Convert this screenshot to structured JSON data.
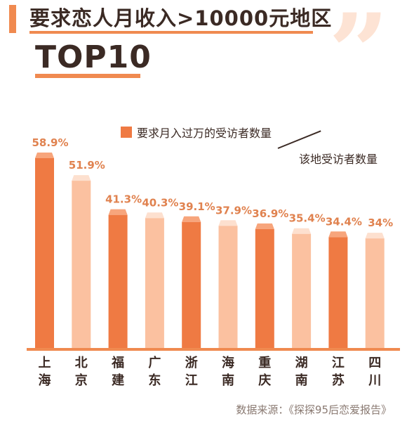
{
  "header": {
    "title": "要求恋人月收入>10000元地区",
    "subtitle": "TOP10",
    "quote_glyph": "”"
  },
  "legend": {
    "bar_label": "要求月入过万的受访者数量",
    "denominator_label": "该地受访者数量"
  },
  "colors": {
    "accent": "#f08a50",
    "bar_dark": "#ef7a43",
    "bar_light": "#fbc1a0",
    "value_label": "#e0824f",
    "text": "#3b2a24"
  },
  "chart_data": {
    "type": "bar",
    "categories": [
      "上海",
      "北京",
      "福建",
      "广东",
      "浙江",
      "海南",
      "重庆",
      "湖南",
      "江苏",
      "四川"
    ],
    "values": [
      58.9,
      51.9,
      41.3,
      40.3,
      39.1,
      37.9,
      36.9,
      35.4,
      34.4,
      34
    ],
    "value_labels": [
      "58.9%",
      "51.9%",
      "41.3%",
      "40.3%",
      "39.1%",
      "37.9%",
      "36.9%",
      "35.4%",
      "34.4%",
      "34%"
    ],
    "ylim": [
      0,
      60
    ],
    "bar_shades": [
      "dark",
      "light",
      "dark",
      "light",
      "dark",
      "light",
      "dark",
      "light",
      "dark",
      "light"
    ],
    "grid": false,
    "legend_position": "top-right"
  },
  "footer": {
    "source": "数据来源：《探探95后恋爱报告》"
  }
}
